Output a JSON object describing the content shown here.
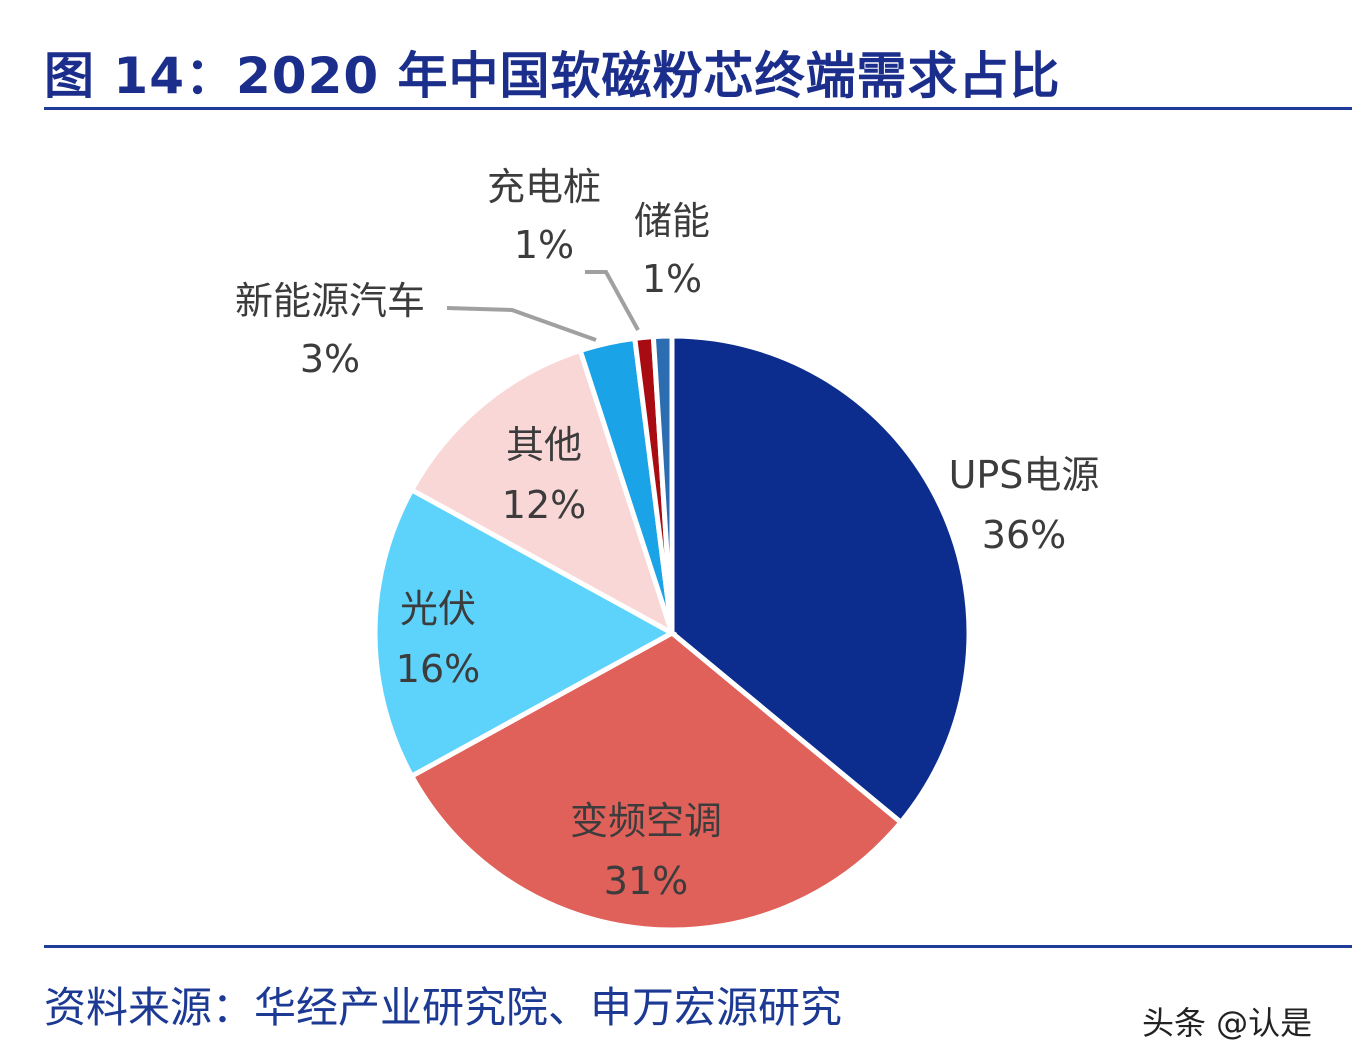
{
  "title": "图 14：2020 年中国软磁粉芯终端需求占比",
  "source": "资料来源：华经产业研究院、申万宏源研究",
  "watermark": "头条 @认是",
  "chart_data": {
    "type": "pie",
    "title": "图 14：2020 年中国软磁粉芯终端需求占比",
    "start": "12 o'clock, clockwise",
    "slices": [
      {
        "label": "UPS电源",
        "value": 36,
        "display": "36%",
        "color": "#0c2d8e"
      },
      {
        "label": "变频空调",
        "value": 31,
        "display": "31%",
        "color": "#e0605a"
      },
      {
        "label": "光伏",
        "value": 16,
        "display": "16%",
        "color": "#5dd2fa"
      },
      {
        "label": "其他",
        "value": 12,
        "display": "12%",
        "color": "#f9d7d7"
      },
      {
        "label": "新能源汽车",
        "value": 3,
        "display": "3%",
        "color": "#1aa3e6"
      },
      {
        "label": "充电桩",
        "value": 1,
        "display": "1%",
        "color": "#a80c12"
      },
      {
        "label": "储能",
        "value": 1,
        "display": "1%",
        "color": "#2c6db2"
      }
    ]
  }
}
